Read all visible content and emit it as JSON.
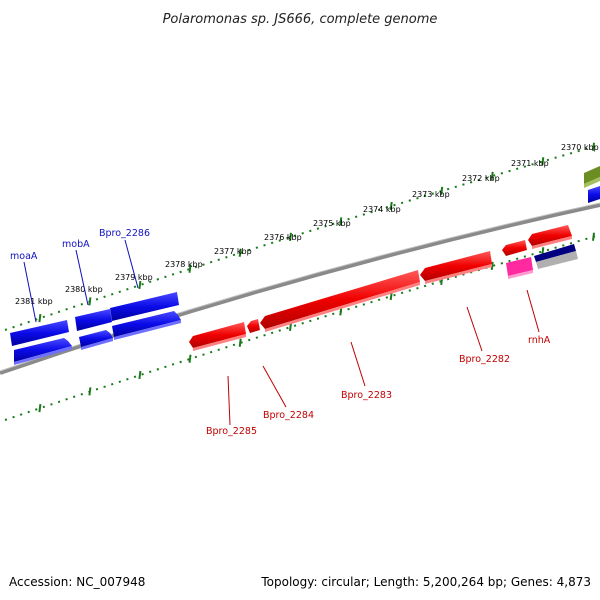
{
  "title": "Polaromonas sp. JS666, complete genome",
  "footer": {
    "accession": "Accession: NC_007948",
    "summary": "Topology: circular; Length: 5,200,264 bp; Genes: 4,873"
  },
  "ruler": {
    "ticks": [
      "2370 kbp",
      "2371 kbp",
      "2372 kbp",
      "2373 kbp",
      "2374 kbp",
      "2375 kbp",
      "2376 kbp",
      "2377 kbp",
      "2378 kbp",
      "2379 kbp",
      "2380 kbp",
      "2381 kbp"
    ]
  },
  "gene_labels": {
    "moaA": "moaA",
    "mobA": "mobA",
    "bpro_2286": "Bpro_2286",
    "bpro_2285": "Bpro_2285",
    "bpro_2284": "Bpro_2284",
    "bpro_2283": "Bpro_2283",
    "bpro_2282": "Bpro_2282",
    "rnhA": "rnhA"
  },
  "colors": {
    "forward_genes": "#1010e0",
    "reverse_genes": "#ff0000",
    "backbone": "#808080",
    "ruler_dots": "#1a7a1a",
    "rna_pink": "#ff2aa0",
    "olive_feature": "#6b8e23",
    "navy_feature": "#000080"
  }
}
